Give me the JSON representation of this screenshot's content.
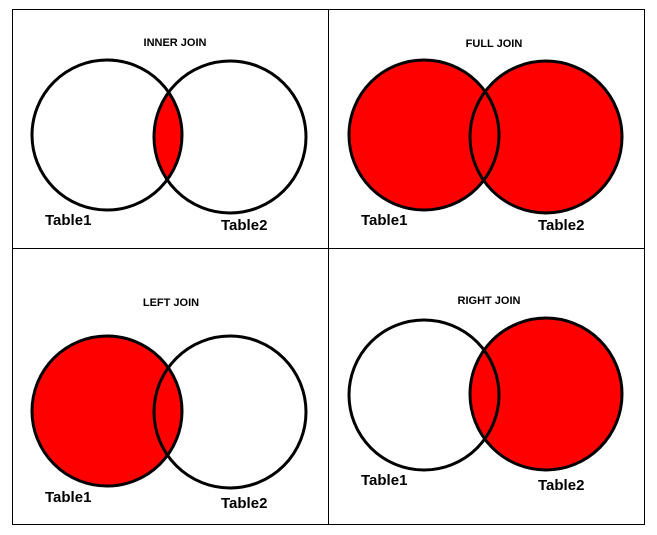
{
  "colors": {
    "fill": "#ff0000",
    "stroke": "#000000",
    "background": "#ffffff",
    "border": "#000000"
  },
  "panels": [
    {
      "title": "INNER JOIN",
      "highlight": "intersection",
      "left_label": "Table1",
      "right_label": "Table2"
    },
    {
      "title": "FULL JOIN",
      "highlight": "both",
      "left_label": "Table1",
      "right_label": "Table2"
    },
    {
      "title": "LEFT JOIN",
      "highlight": "left",
      "left_label": "Table1",
      "right_label": "Table2"
    },
    {
      "title": "RIGHT JOIN",
      "highlight": "right",
      "left_label": "Table1",
      "right_label": "Table2"
    }
  ]
}
